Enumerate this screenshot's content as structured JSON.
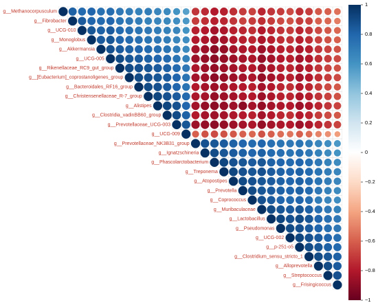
{
  "chart_data": {
    "type": "correlation",
    "categories": [
      "g__Methanocorpusculum",
      "g__Fibrobacter",
      "g__UCG-010",
      "g__Monoglobus",
      "g__Akkermansia",
      "g__UCG-005",
      "g__Rikenellaceae_RC9_gut_group",
      "g__[Eubacterium]_coprostanoligenes_group",
      "g__Bacteroidales_RF16_group",
      "g__Christensenellaceae_R-7_group",
      "g__Alistipes",
      "g__Clostridia_vadinBB60_group",
      "g__Prevotellaceae_UCG-003",
      "g__UCG-009",
      "g__Prevotellaceae_NK3B31_group",
      "g__Ignatzschineria",
      "g__Phascolarctobacterium",
      "g__Treponema",
      "g__Atopostipes",
      "g__Prevotella",
      "g__Coprococcus",
      "g__Muribaculaceae",
      "g__Lactobacillus",
      "g__Pseudomonas",
      "g__UCG-002",
      "g__p-251-o5",
      "g__Clostridium_sensu_stricto_1",
      "g__Alloprevotella",
      "g__Streptococcus",
      "g__Frisingicoccus"
    ],
    "values": [
      [
        1,
        0.82,
        0.78,
        0.8,
        0.75,
        0.77,
        0.72,
        0.7,
        0.68,
        0.7,
        0.66,
        0.64,
        0.6,
        0.55,
        -0.72,
        -0.75,
        -0.8,
        -0.78,
        -0.74,
        -0.7,
        -0.68,
        -0.76,
        -0.72,
        -0.7,
        -0.66,
        -0.74,
        -0.7,
        -0.62,
        -0.6,
        -0.55
      ],
      [
        1,
        0.84,
        0.8,
        0.78,
        0.8,
        0.74,
        0.72,
        0.7,
        0.68,
        0.66,
        0.65,
        0.62,
        0.58,
        -0.7,
        -0.74,
        -0.78,
        -0.76,
        -0.72,
        -0.68,
        -0.7,
        -0.74,
        -0.7,
        -0.66,
        -0.64,
        -0.7,
        -0.68,
        -0.6,
        -0.58,
        -0.52
      ],
      [
        1,
        0.86,
        0.82,
        0.84,
        0.78,
        0.76,
        0.74,
        0.72,
        0.7,
        0.68,
        0.66,
        0.6,
        -0.78,
        -0.8,
        -0.84,
        -0.82,
        -0.78,
        -0.76,
        -0.74,
        -0.8,
        -0.76,
        -0.72,
        -0.7,
        -0.76,
        -0.72,
        -0.66,
        -0.62,
        -0.58
      ],
      [
        1,
        0.84,
        0.86,
        0.8,
        0.78,
        0.76,
        0.74,
        0.72,
        0.7,
        0.66,
        0.62,
        -0.8,
        -0.82,
        -0.86,
        -0.84,
        -0.8,
        -0.78,
        -0.76,
        -0.82,
        -0.78,
        -0.74,
        -0.72,
        -0.78,
        -0.74,
        -0.68,
        -0.64,
        -0.6
      ],
      [
        1,
        0.88,
        0.84,
        0.82,
        0.8,
        0.78,
        0.76,
        0.74,
        0.7,
        0.64,
        -0.84,
        -0.86,
        -0.9,
        -0.88,
        -0.84,
        -0.82,
        -0.8,
        -0.86,
        -0.82,
        -0.78,
        -0.76,
        -0.82,
        -0.78,
        -0.72,
        -0.68,
        -0.64
      ],
      [
        1,
        0.9,
        0.86,
        0.84,
        0.82,
        0.8,
        0.78,
        0.74,
        0.68,
        -0.86,
        -0.88,
        -0.9,
        -0.88,
        -0.86,
        -0.84,
        -0.82,
        -0.88,
        -0.84,
        -0.8,
        -0.78,
        -0.84,
        -0.8,
        -0.74,
        -0.7,
        -0.66
      ],
      [
        1,
        0.9,
        0.88,
        0.86,
        0.84,
        0.82,
        0.78,
        0.72,
        -0.82,
        -0.86,
        -0.88,
        -0.86,
        -0.84,
        -0.82,
        -0.8,
        -0.86,
        -0.82,
        -0.78,
        -0.76,
        -0.82,
        -0.78,
        -0.72,
        -0.68,
        -0.64
      ],
      [
        1,
        0.9,
        0.88,
        0.86,
        0.84,
        0.8,
        0.74,
        -0.84,
        -0.86,
        -0.9,
        -0.88,
        -0.86,
        -0.84,
        -0.82,
        -0.88,
        -0.84,
        -0.8,
        -0.78,
        -0.84,
        -0.8,
        -0.74,
        -0.7,
        -0.66
      ],
      [
        1,
        0.9,
        0.88,
        0.84,
        0.8,
        0.74,
        -0.8,
        -0.84,
        -0.86,
        -0.84,
        -0.82,
        -0.8,
        -0.78,
        -0.84,
        -0.8,
        -0.76,
        -0.74,
        -0.8,
        -0.76,
        -0.7,
        -0.66,
        -0.62
      ],
      [
        1,
        0.92,
        0.88,
        0.84,
        0.78,
        -0.82,
        -0.84,
        -0.88,
        -0.86,
        -0.84,
        -0.82,
        -0.8,
        -0.86,
        -0.82,
        -0.78,
        -0.76,
        -0.82,
        -0.78,
        -0.72,
        -0.68,
        -0.64
      ],
      [
        1,
        0.92,
        0.88,
        0.8,
        -0.84,
        -0.88,
        -0.9,
        -0.88,
        -0.86,
        -0.9,
        -0.84,
        -0.88,
        -0.84,
        -0.82,
        -0.8,
        -0.86,
        -0.82,
        -0.76,
        -0.72,
        -0.68
      ],
      [
        1,
        0.9,
        0.82,
        -0.8,
        -0.84,
        -0.86,
        -0.84,
        -0.82,
        -0.8,
        -0.78,
        -0.84,
        -0.8,
        -0.76,
        -0.74,
        -0.8,
        -0.76,
        -0.7,
        -0.66,
        -0.62
      ],
      [
        1,
        0.86,
        -0.86,
        -0.88,
        -0.9,
        -0.88,
        -0.86,
        -0.84,
        -0.82,
        -0.88,
        -0.84,
        -0.82,
        -0.8,
        -0.86,
        -0.82,
        -0.76,
        -0.72,
        -0.68
      ],
      [
        1,
        -0.6,
        -0.64,
        -0.66,
        -0.64,
        -0.62,
        -0.6,
        -0.58,
        -0.64,
        -0.6,
        -0.56,
        -0.54,
        -0.6,
        -0.56,
        -0.5,
        -0.46,
        -0.42
      ],
      [
        1,
        0.88,
        0.86,
        0.84,
        0.82,
        0.8,
        0.78,
        0.8,
        0.76,
        0.74,
        0.72,
        0.74,
        0.7,
        0.66,
        0.62,
        0.58
      ],
      [
        1,
        0.9,
        0.86,
        0.84,
        0.82,
        0.8,
        0.82,
        0.78,
        0.76,
        0.74,
        0.76,
        0.72,
        0.68,
        0.64,
        0.6
      ],
      [
        1,
        0.92,
        0.88,
        0.86,
        0.84,
        0.86,
        0.82,
        0.8,
        0.78,
        0.8,
        0.76,
        0.72,
        0.68,
        0.64
      ],
      [
        1,
        0.92,
        0.88,
        0.86,
        0.88,
        0.84,
        0.82,
        0.8,
        0.82,
        0.78,
        0.74,
        0.7,
        0.66
      ],
      [
        1,
        0.9,
        0.88,
        0.86,
        0.84,
        0.82,
        0.8,
        0.82,
        0.78,
        0.74,
        0.7,
        0.66
      ],
      [
        1,
        0.9,
        0.86,
        0.84,
        0.82,
        0.8,
        0.82,
        0.78,
        0.72,
        0.68,
        0.64
      ],
      [
        1,
        0.88,
        0.84,
        0.8,
        0.78,
        0.8,
        0.76,
        0.7,
        0.66,
        0.62
      ],
      [
        1,
        0.9,
        0.86,
        0.84,
        0.86,
        0.82,
        0.76,
        0.72,
        0.68
      ],
      [
        1,
        0.92,
        0.88,
        0.9,
        0.86,
        0.8,
        0.76,
        0.72
      ],
      [
        1,
        0.9,
        0.88,
        0.84,
        0.8,
        0.76,
        0.72
      ],
      [
        1,
        0.92,
        0.88,
        0.84,
        0.8,
        0.76
      ],
      [
        1,
        0.9,
        0.86,
        0.82,
        0.78
      ],
      [
        1,
        0.9,
        0.86,
        0.82
      ],
      [
        1,
        0.9,
        0.84
      ],
      [
        1,
        0.88
      ],
      [
        1
      ]
    ],
    "colors": [
      "#67001F",
      "#B2182B",
      "#D6604D",
      "#F4A582",
      "#FDDBC7",
      "#FFFFFF",
      "#D1E5F0",
      "#92C5DE",
      "#4393C3",
      "#2166AC",
      "#053061"
    ],
    "ylim": [
      -1,
      1
    ],
    "yticks": [
      1,
      0.8,
      0.6,
      0.4,
      0.2,
      0,
      {
        "value": -0.2,
        "label": "−0.2"
      },
      {
        "value": -0.4,
        "label": "−0.4"
      },
      {
        "value": -0.6,
        "label": "−0.6"
      },
      {
        "value": -0.8,
        "label": "−0.8"
      },
      {
        "value": -1,
        "label": "−1"
      }
    ]
  }
}
